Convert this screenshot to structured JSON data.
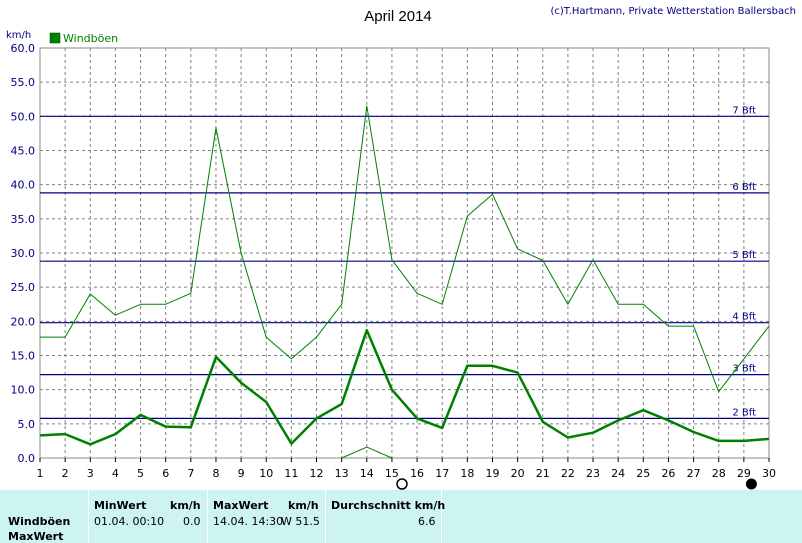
{
  "chart_data": {
    "type": "line",
    "title": "April 2014",
    "credit": "(c)T.Hartmann, Private Wetterstation Ballersbach",
    "ylabel": "km/h",
    "ylim": [
      0,
      60
    ],
    "yticks": [
      "0.0",
      "5.0",
      "10.0",
      "15.0",
      "20.0",
      "25.0",
      "30.0",
      "35.0",
      "40.0",
      "45.0",
      "50.0",
      "55.0",
      "60.0"
    ],
    "xlim": [
      1,
      30
    ],
    "xticks": [
      "1",
      "2",
      "3",
      "4",
      "5",
      "6",
      "7",
      "8",
      "9",
      "10",
      "11",
      "12",
      "13",
      "14",
      "15",
      "16",
      "17",
      "18",
      "19",
      "20",
      "21",
      "22",
      "23",
      "24",
      "25",
      "26",
      "27",
      "28",
      "29",
      "30"
    ],
    "grid": true,
    "legend": {
      "position": "top-left",
      "label": "Windböen",
      "color": "#008000"
    },
    "beaufort_lines": [
      {
        "label": "2 Bft",
        "value": 5.8
      },
      {
        "label": "3 Bft",
        "value": 12.2
      },
      {
        "label": "4 Bft",
        "value": 19.8
      },
      {
        "label": "5 Bft",
        "value": 28.8
      },
      {
        "label": "6 Bft",
        "value": 38.8
      },
      {
        "label": "7 Bft",
        "value": 50.0
      }
    ],
    "series": [
      {
        "name": "Windböen max",
        "color": "#008000",
        "width": 1,
        "x": [
          1,
          2,
          3,
          4,
          5,
          6,
          7,
          8,
          9,
          10,
          11,
          12,
          13,
          14,
          15,
          16,
          17,
          18,
          19,
          20,
          21,
          22,
          23,
          24,
          25,
          26,
          27,
          28,
          29,
          30
        ],
        "y": [
          17.7,
          17.7,
          24.0,
          20.9,
          22.5,
          22.5,
          24.1,
          48.3,
          30.0,
          17.7,
          14.5,
          17.7,
          22.5,
          51.5,
          29.0,
          24.1,
          22.5,
          35.4,
          38.6,
          30.6,
          28.9,
          22.5,
          29.0,
          22.5,
          22.5,
          19.3,
          19.3,
          9.7,
          14.5,
          19.3
        ]
      },
      {
        "name": "Windböen mittel",
        "color": "#008000",
        "width": 2.5,
        "x": [
          1,
          2,
          3,
          4,
          5,
          6,
          7,
          8,
          9,
          10,
          11,
          12,
          13,
          14,
          15,
          16,
          17,
          18,
          19,
          20,
          21,
          22,
          23,
          24,
          25,
          26,
          27,
          28,
          29,
          30
        ],
        "y": [
          3.3,
          3.5,
          2.0,
          3.5,
          6.3,
          4.6,
          4.5,
          14.8,
          11.0,
          8.2,
          2.1,
          5.8,
          7.9,
          18.7,
          10.0,
          5.8,
          4.4,
          13.5,
          13.5,
          12.5,
          5.3,
          3.0,
          3.7,
          5.5,
          7.0,
          5.5,
          3.8,
          2.5,
          2.5,
          2.8
        ]
      },
      {
        "name": "Windböen min",
        "color": "#008000",
        "width": 1,
        "x": [
          13,
          14,
          15
        ],
        "y": [
          0.0,
          1.6,
          0.0
        ]
      }
    ],
    "moon_phases": [
      {
        "x": 15.4,
        "phase": "full"
      },
      {
        "x": 29.3,
        "phase": "new"
      }
    ]
  },
  "footer": {
    "row_label_1": "Windböen",
    "row_label_2": "MaxWert",
    "min_header": "MinWert",
    "min_unit": "km/h",
    "min_datetime": "01.04.  00:10",
    "min_value": "0.0",
    "max_header": "MaxWert",
    "max_unit": "km/h",
    "max_datetime": "14.04.  14:30",
    "max_value": "W 51.5",
    "avg_header": "Durchschnitt km/h",
    "avg_value": "6.6"
  }
}
